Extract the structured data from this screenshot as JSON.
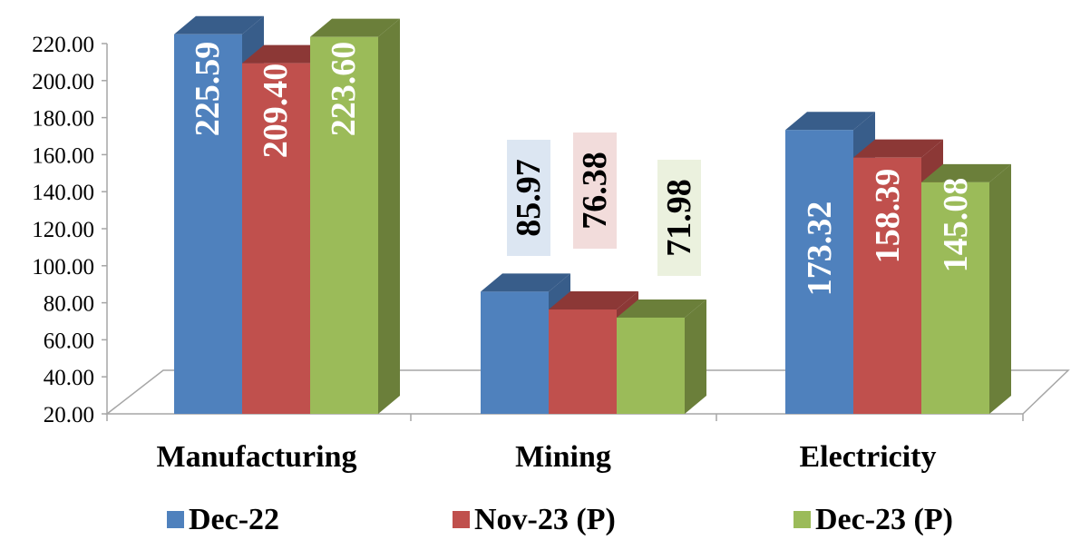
{
  "chart_data": {
    "type": "bar",
    "title": "",
    "xlabel": "",
    "ylabel": "",
    "categories": [
      "Manufacturing",
      "Mining",
      "Electricity"
    ],
    "series": [
      {
        "name": "Dec-22",
        "values": [
          225.59,
          85.97,
          173.32
        ],
        "color": "#4F81BD",
        "side": "#385D8A",
        "top": "#385D8A"
      },
      {
        "name": "Nov-23 (P)",
        "values": [
          209.4,
          76.38,
          158.39
        ],
        "color": "#C0504D",
        "side": "#8C3836",
        "top": "#8C3836"
      },
      {
        "name": "Dec-23 (P)",
        "values": [
          223.6,
          71.98,
          145.08
        ],
        "color": "#9BBB59",
        "side": "#6B7F3A",
        "top": "#6B7F3A"
      }
    ],
    "value_labels": [
      [
        "225.59",
        "85.97",
        "173.32"
      ],
      [
        "209.40",
        "76.38",
        "158.39"
      ],
      [
        "223.60",
        "71.98",
        "145.08"
      ]
    ],
    "y_ticks": [
      "20.00",
      "40.00",
      "60.00",
      "80.00",
      "100.00",
      "120.00",
      "140.00",
      "160.00",
      "180.00",
      "200.00",
      "220.00"
    ],
    "ylim": [
      20,
      220
    ],
    "grid": false,
    "legend_position": "bottom",
    "label_box_colors": [
      "#DCE6F2",
      "#F2DCDB",
      "#EBF1DE"
    ]
  }
}
